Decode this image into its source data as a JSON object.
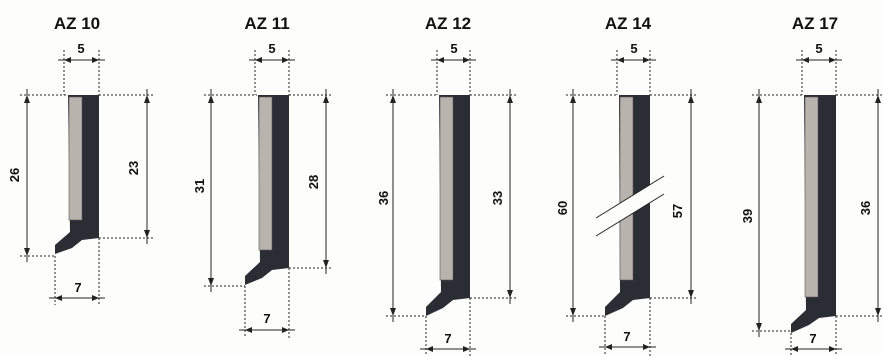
{
  "profiles": [
    {
      "title": "AZ 10",
      "top_width": "5",
      "total_height": "26",
      "inner_height": "23",
      "bottom_width": "7",
      "broken": false
    },
    {
      "title": "AZ 11",
      "top_width": "5",
      "total_height": "31",
      "inner_height": "28",
      "bottom_width": "7",
      "broken": false
    },
    {
      "title": "AZ 12",
      "top_width": "5",
      "total_height": "36",
      "inner_height": "33",
      "bottom_width": "7",
      "broken": false
    },
    {
      "title": "AZ 14",
      "top_width": "5",
      "total_height": "60",
      "inner_height": "57",
      "bottom_width": "7",
      "broken": true
    },
    {
      "title": "AZ 17",
      "top_width": "5",
      "total_height": "39",
      "inner_height": "36",
      "bottom_width": "7",
      "broken": false
    }
  ],
  "colors": {
    "plate_dark": "#2a2d34",
    "plate_light": "#b9b3ad",
    "lines": "#222222",
    "background": "#fdfdfb"
  }
}
